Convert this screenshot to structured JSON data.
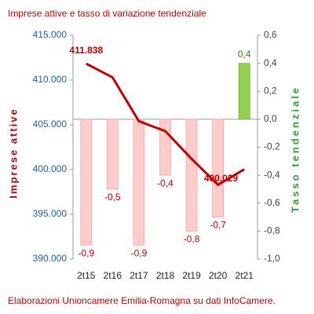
{
  "chart_data": {
    "type": "bar-line",
    "title": "Imprese attive e tasso di variazione tendenziale",
    "y_label": "Imprese attive",
    "y2_label": "Tasso tendenziale",
    "footnote": "Elaborazioni Unioncamere Emilia-Romagna su dati InfoCamere.",
    "categories": [
      "2t15",
      "2t16",
      "2t17",
      "2t18",
      "2t19",
      "2t20",
      "2t21"
    ],
    "series": [
      {
        "type": "bar",
        "axis": "y2",
        "colors": [
          "#ffcccc",
          "#ffcccc",
          "#ffcccc",
          "#ffcccc",
          "#ffcccc",
          "#ffcccc",
          "#92d050"
        ],
        "values": [
          -0.9,
          -0.5,
          -0.9,
          -0.4,
          -0.8,
          -0.7,
          0.4
        ],
        "value_labels": [
          "-0,9",
          "-0,5",
          "-0,9",
          "-0,4",
          "-0,8",
          "-0,7",
          "0,4"
        ]
      },
      {
        "type": "line",
        "axis": "y",
        "color": "#c00000",
        "values": [
          411838,
          410300,
          405400,
          404300,
          401200,
          398300,
          400029
        ],
        "value_labels": [
          "411.838",
          null,
          null,
          null,
          null,
          null,
          "400.029"
        ]
      }
    ],
    "ylim": [
      390000,
      415000
    ],
    "yticks": [
      {
        "value": 390000,
        "label": "390.000"
      },
      {
        "value": 395000,
        "label": "395.000"
      },
      {
        "value": 400000,
        "label": "400.000"
      },
      {
        "value": 405000,
        "label": "405.000"
      },
      {
        "value": 410000,
        "label": "410.000"
      },
      {
        "value": 415000,
        "label": "415.000"
      }
    ],
    "y2lim": [
      -1.0,
      0.6
    ],
    "y2ticks": [
      {
        "value": -1.0,
        "label": "-1,0"
      },
      {
        "value": -0.8,
        "label": "-0,8"
      },
      {
        "value": -0.6,
        "label": "-0,6"
      },
      {
        "value": -0.4,
        "label": "-0,4"
      },
      {
        "value": -0.2,
        "label": "-0,2"
      },
      {
        "value": 0.0,
        "label": "0,0"
      },
      {
        "value": 0.2,
        "label": "0,2"
      },
      {
        "value": 0.4,
        "label": "0,4"
      },
      {
        "value": 0.6,
        "label": "0,6"
      }
    ]
  }
}
